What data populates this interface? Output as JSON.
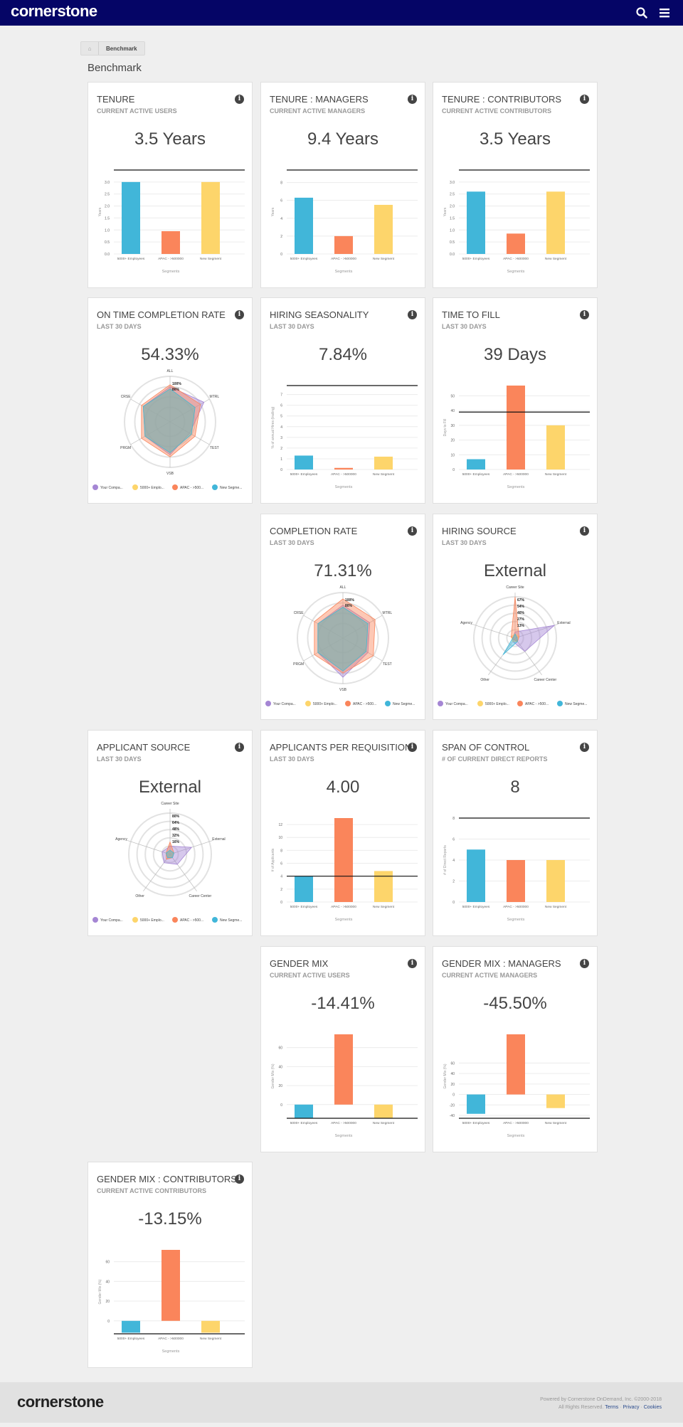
{
  "header": {
    "logo": "cornerstone",
    "search_icon": "search-icon",
    "menu_icon": "hamburger-menu-icon",
    "bg_color": "#050566"
  },
  "breadcrumb": {
    "home_icon": "home-icon",
    "item": "Benchmark"
  },
  "page": {
    "title": "Benchmark"
  },
  "colors": {
    "blue": "#41b6d9",
    "orange": "#fa855b",
    "yellow": "#fdd56b",
    "purple": "#a586d4"
  },
  "cards": [
    {
      "title": "TENURE",
      "subtitle": "CURRENT ACTIVE USERS",
      "value": "3.5 Years",
      "chart_data": {
        "type": "bar",
        "categories": [
          "5000+ Employees",
          "APAC - >500000",
          "New Segment"
        ],
        "values": [
          3.0,
          0.95,
          3.0
        ],
        "ylim": [
          0,
          3.5
        ],
        "yticks": [
          "0.0",
          "0.5",
          "1.0",
          "1.5",
          "2.0",
          "2.5",
          "3.0"
        ],
        "ylabel": "Years",
        "xlabel": "Segments",
        "reference": 3.5
      }
    },
    {
      "title": "TENURE : MANAGERS",
      "subtitle": "CURRENT ACTIVE MANAGERS",
      "value": "9.4 Years",
      "chart_data": {
        "type": "bar",
        "categories": [
          "5000+ Employees",
          "APAC - >500000",
          "New Segment"
        ],
        "values": [
          6.3,
          2.0,
          5.5
        ],
        "ylim": [
          0,
          9.4
        ],
        "yticks": [
          "0",
          "2",
          "4",
          "6",
          "8"
        ],
        "ylabel": "Years",
        "xlabel": "Segments",
        "reference": 9.4
      }
    },
    {
      "title": "TENURE : CONTRIBUTORS",
      "subtitle": "CURRENT ACTIVE CONTRIBUTORS",
      "value": "3.5 Years",
      "chart_data": {
        "type": "bar",
        "categories": [
          "5000+ Employees",
          "APAC - >500000",
          "New Segment"
        ],
        "values": [
          2.6,
          0.85,
          2.6
        ],
        "ylim": [
          0,
          3.5
        ],
        "yticks": [
          "0.0",
          "0.5",
          "1.0",
          "1.5",
          "2.0",
          "2.5",
          "3.0"
        ],
        "ylabel": "Years",
        "xlabel": "Segments",
        "reference": 3.5
      }
    },
    {
      "title": "ON TIME COMPLETION RATE",
      "subtitle": "LAST 30 DAYS",
      "value": "54.33%",
      "chart_data": {
        "type": "radar",
        "axes": [
          "ALL",
          "MTRL",
          "TEST",
          "VSB",
          "PRGM",
          "CRSE"
        ],
        "rings": [
          "100%",
          "80%"
        ],
        "series": [
          {
            "name": "Your Compa...",
            "color": "purple",
            "values": [
              0.85,
              0.95,
              0.55,
              0.8,
              0.7,
              0.75
            ]
          },
          {
            "name": "5000+ Emplo...",
            "color": "yellow",
            "values": [
              0.8,
              0.7,
              0.6,
              0.75,
              0.7,
              0.75
            ]
          },
          {
            "name": "APAC - >500...",
            "color": "orange",
            "values": [
              0.9,
              0.85,
              0.7,
              0.85,
              0.8,
              0.8
            ]
          },
          {
            "name": "New Segme...",
            "color": "blue",
            "values": [
              0.8,
              0.7,
              0.6,
              0.75,
              0.7,
              0.75
            ]
          }
        ]
      }
    },
    {
      "title": "HIRING SEASONALITY",
      "subtitle": "LAST 30 DAYS",
      "value": "7.84%",
      "chart_data": {
        "type": "bar",
        "categories": [
          "5000+ Employees",
          "APAC - >500000",
          "New Segment"
        ],
        "values": [
          1.3,
          0.15,
          1.2
        ],
        "ylim": [
          0,
          7.84
        ],
        "yticks": [
          "0",
          "1",
          "2",
          "3",
          "4",
          "5",
          "6",
          "7"
        ],
        "ylabel": "% of annual Hires (trailing)",
        "xlabel": "Segments",
        "reference": 7.84
      }
    },
    {
      "title": "TIME TO FILL",
      "subtitle": "LAST 30 DAYS",
      "value": "39 Days",
      "chart_data": {
        "type": "bar",
        "categories": [
          "5000+ Employees",
          "APAC - >500000",
          "New Segment"
        ],
        "values": [
          7,
          57,
          30
        ],
        "ylim": [
          0,
          57
        ],
        "yticks": [
          "0",
          "10",
          "20",
          "30",
          "40",
          "50"
        ],
        "ylabel": "Days to Fill",
        "xlabel": "Segments",
        "reference": 39
      }
    },
    {
      "title": "COMPLETION RATE",
      "subtitle": "LAST 30 DAYS",
      "value": "71.31%",
      "chart_data": {
        "type": "radar",
        "axes": [
          "ALL",
          "MTRL",
          "TEST",
          "VSB",
          "PRGM",
          "CRSE"
        ],
        "rings": [
          "100%",
          "80%"
        ],
        "series": [
          {
            "name": "Your Compa...",
            "color": "purple",
            "values": [
              0.8,
              0.75,
              0.7,
              0.95,
              0.7,
              0.7
            ]
          },
          {
            "name": "5000+ Emplo...",
            "color": "yellow",
            "values": [
              0.75,
              0.7,
              0.65,
              0.8,
              0.7,
              0.7
            ]
          },
          {
            "name": "APAC - >500...",
            "color": "orange",
            "values": [
              0.95,
              0.9,
              0.85,
              0.85,
              0.8,
              0.8
            ]
          },
          {
            "name": "New Segme...",
            "color": "blue",
            "values": [
              0.75,
              0.7,
              0.65,
              0.8,
              0.7,
              0.7
            ]
          }
        ]
      }
    },
    {
      "title": "HIRING SOURCE",
      "subtitle": "LAST 30 DAYS",
      "value": "External",
      "chart_data": {
        "type": "radar",
        "axes": [
          "Career Site",
          "External",
          "Career Center",
          "Other",
          "Agency"
        ],
        "rings": [
          "67%",
          "54%",
          "40%",
          "27%",
          "13%"
        ],
        "series": [
          {
            "name": "Your Compa...",
            "color": "purple",
            "values": [
              0.15,
              1.0,
              0.4,
              0.1,
              0.05
            ]
          },
          {
            "name": "5000+ Emplo...",
            "color": "yellow",
            "values": [
              0.1,
              0.1,
              0.1,
              0.1,
              0.1
            ]
          },
          {
            "name": "APAC - >500...",
            "color": "orange",
            "values": [
              1.0,
              0.1,
              0.1,
              0.05,
              0.1
            ]
          },
          {
            "name": "New Segme...",
            "color": "blue",
            "values": [
              0.1,
              0.05,
              0.1,
              0.5,
              0.05
            ]
          }
        ]
      }
    },
    {
      "title": "APPLICANT SOURCE",
      "subtitle": "LAST 30 DAYS",
      "value": "External",
      "chart_data": {
        "type": "radar",
        "axes": [
          "Career Site",
          "External",
          "Career Center",
          "Other",
          "Agency"
        ],
        "rings": [
          "80%",
          "64%",
          "48%",
          "32%",
          "16%"
        ],
        "series": [
          {
            "name": "Your Compa...",
            "color": "purple",
            "values": [
              0.2,
              0.55,
              0.3,
              0.25,
              0.2
            ]
          },
          {
            "name": "5000+ Emplo...",
            "color": "yellow",
            "values": [
              0.1,
              0.1,
              0.1,
              0.1,
              0.1
            ]
          },
          {
            "name": "APAC - >500...",
            "color": "orange",
            "values": [
              0.3,
              0.1,
              0.1,
              0.15,
              0.1
            ]
          },
          {
            "name": "New Segme...",
            "color": "blue",
            "values": [
              0.1,
              0.1,
              0.1,
              0.1,
              0.1
            ]
          }
        ]
      }
    },
    {
      "title": "APPLICANTS PER REQUISITION",
      "subtitle": "LAST 30 DAYS",
      "value": "4.00",
      "chart_data": {
        "type": "bar",
        "categories": [
          "5000+ Employees",
          "APAC - >500000",
          "New Segment"
        ],
        "values": [
          4,
          13,
          4.8
        ],
        "ylim": [
          0,
          13
        ],
        "yticks": [
          "0",
          "2",
          "4",
          "6",
          "8",
          "10",
          "12"
        ],
        "ylabel": "# of Applicants",
        "xlabel": "Segments",
        "reference": 4
      }
    },
    {
      "title": "SPAN OF CONTROL",
      "subtitle": "# OF CURRENT DIRECT REPORTS",
      "value": "8",
      "chart_data": {
        "type": "bar",
        "categories": [
          "5000+ Employees",
          "APAC - >500000",
          "New Segment"
        ],
        "values": [
          5,
          4,
          4
        ],
        "ylim": [
          0,
          8
        ],
        "yticks": [
          "0",
          "2",
          "4",
          "6",
          "8"
        ],
        "ylabel": "# of Direct Reports",
        "xlabel": "Segments",
        "reference": 8
      }
    },
    {
      "title": "GENDER MIX",
      "subtitle": "CURRENT ACTIVE USERS",
      "value": "-14.41%",
      "chart_data": {
        "type": "bar",
        "categories": [
          "5000+ Employees",
          "APAC - >500000",
          "New Segment"
        ],
        "values": [
          -14,
          74,
          -14
        ],
        "ylim": [
          -14.41,
          74
        ],
        "yticks": [
          "0",
          "20",
          "40",
          "60"
        ],
        "ylabel": "Gender Mix (%)",
        "xlabel": "Segments",
        "reference": -14.41
      }
    },
    {
      "title": "GENDER MIX : MANAGERS",
      "subtitle": "CURRENT ACTIVE MANAGERS",
      "value": "-45.50%",
      "chart_data": {
        "type": "bar",
        "categories": [
          "5000+ Employees",
          "APAC - >500000",
          "New Segment"
        ],
        "values": [
          -37,
          115,
          -26
        ],
        "ylim": [
          -45.5,
          115
        ],
        "yticks": [
          "-40",
          "-20",
          "0",
          "20",
          "40",
          "60"
        ],
        "ylabel": "Gender Mix (%)",
        "xlabel": "Segments",
        "reference": -45.5
      }
    },
    {
      "title": "GENDER MIX : CONTRIBUTORS",
      "subtitle": "CURRENT ACTIVE CONTRIBUTORS",
      "value": "-13.15%",
      "chart_data": {
        "type": "bar",
        "categories": [
          "5000+ Employees",
          "APAC - >500000",
          "New Segment"
        ],
        "values": [
          -12,
          72,
          -12
        ],
        "ylim": [
          -13.15,
          72
        ],
        "yticks": [
          "0",
          "20",
          "40",
          "60"
        ],
        "ylabel": "Gender Mix (%)",
        "xlabel": "Segments",
        "reference": -13.15
      }
    }
  ],
  "footer": {
    "logo": "cornerstone",
    "powered": "Powered by Cornerstone OnDemand, Inc. ©2000-2018",
    "rights": "All Rights Reserved.",
    "links": [
      "Terms",
      "Privacy",
      "Cookies"
    ]
  }
}
